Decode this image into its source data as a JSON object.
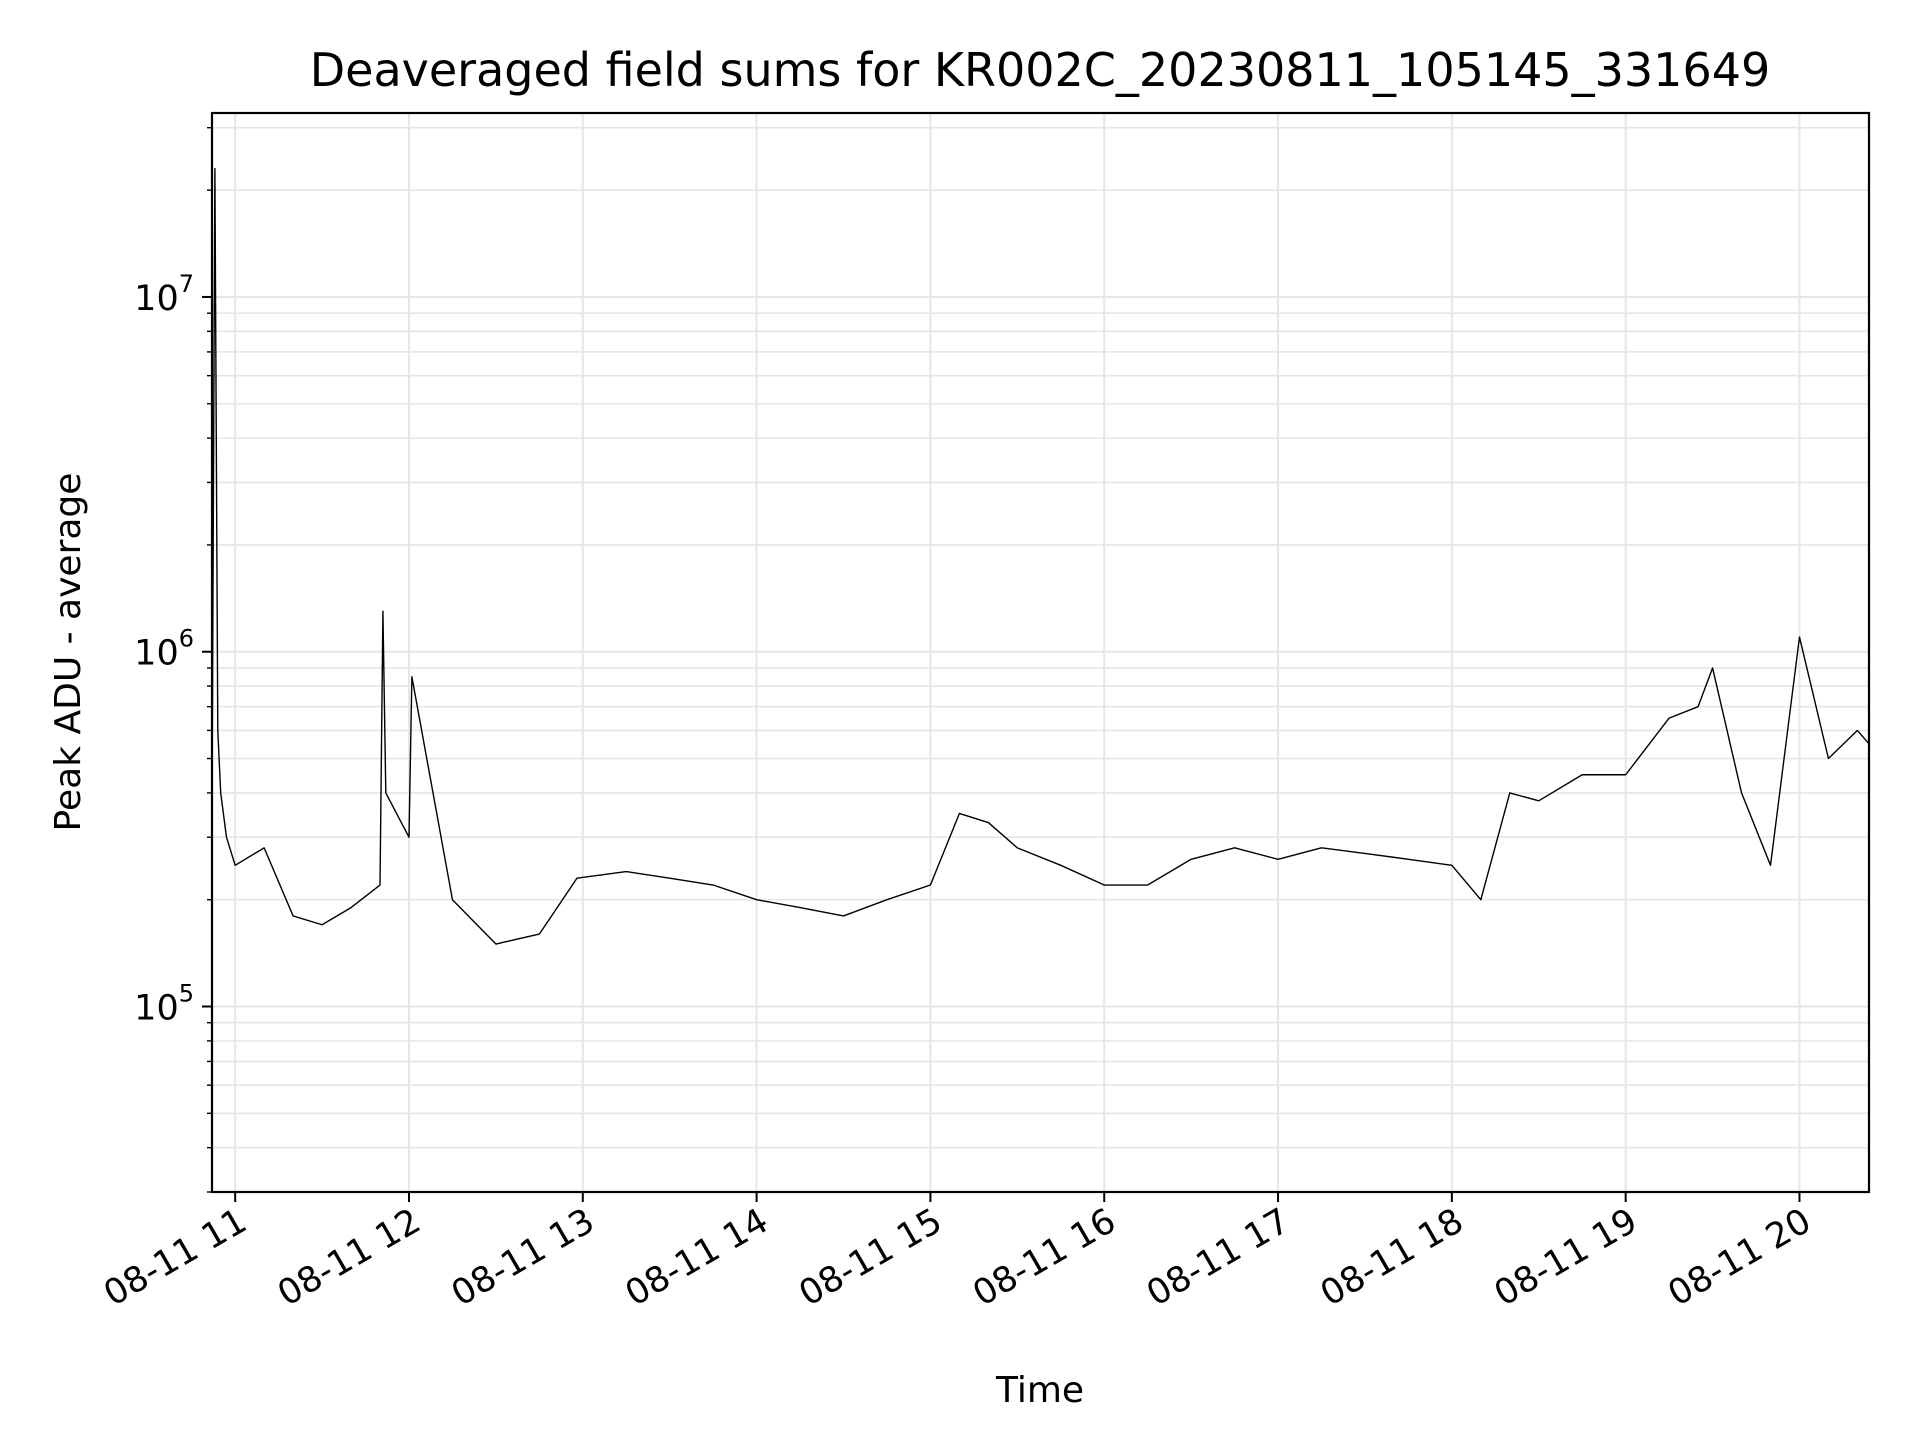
{
  "chart_data": {
    "type": "line",
    "title": "Deaveraged field sums for KR002C_20230811_105145_331649",
    "xlabel": "Time",
    "ylabel": "Peak ADU - average",
    "x_axis_type": "time",
    "xlim": [
      "2023-08-11 10:52",
      "2023-08-11 20:24"
    ],
    "y_scale": "log",
    "ylim": [
      30000,
      33000000
    ],
    "grid": true,
    "legend": "none",
    "x_tick_labels": [
      "08-11 11",
      "08-11 12",
      "08-11 13",
      "08-11 14",
      "08-11 15",
      "08-11 16",
      "08-11 17",
      "08-11 18",
      "08-11 19",
      "08-11 20"
    ],
    "y_tick_labels": [
      {
        "base": "10",
        "exp": "5"
      },
      {
        "base": "10",
        "exp": "6"
      },
      {
        "base": "10",
        "exp": "7"
      }
    ],
    "colors": {
      "line": "#000000",
      "grid": "#e6e6e6",
      "axes": "#000000"
    },
    "series": [
      {
        "x": [
          "2023-08-11 10:52",
          "2023-08-11 10:53",
          "2023-08-11 10:54",
          "2023-08-11 10:55",
          "2023-08-11 10:57",
          "2023-08-11 11:00",
          "2023-08-11 11:10",
          "2023-08-11 11:20",
          "2023-08-11 11:30",
          "2023-08-11 11:40",
          "2023-08-11 11:50",
          "2023-08-11 11:51",
          "2023-08-11 11:52",
          "2023-08-11 12:00",
          "2023-08-11 12:01",
          "2023-08-11 12:15",
          "2023-08-11 12:30",
          "2023-08-11 12:45",
          "2023-08-11 12:58",
          "2023-08-11 13:15",
          "2023-08-11 13:30",
          "2023-08-11 13:45",
          "2023-08-11 14:00",
          "2023-08-11 14:15",
          "2023-08-11 14:30",
          "2023-08-11 14:45",
          "2023-08-11 15:00",
          "2023-08-11 15:10",
          "2023-08-11 15:20",
          "2023-08-11 15:30",
          "2023-08-11 15:45",
          "2023-08-11 16:00",
          "2023-08-11 16:15",
          "2023-08-11 16:30",
          "2023-08-11 16:45",
          "2023-08-11 17:00",
          "2023-08-11 17:15",
          "2023-08-11 17:30",
          "2023-08-11 17:45",
          "2023-08-11 18:00",
          "2023-08-11 18:10",
          "2023-08-11 18:20",
          "2023-08-11 18:30",
          "2023-08-11 18:45",
          "2023-08-11 19:00",
          "2023-08-11 19:15",
          "2023-08-11 19:25",
          "2023-08-11 19:30",
          "2023-08-11 19:40",
          "2023-08-11 19:50",
          "2023-08-11 20:00",
          "2023-08-11 20:10",
          "2023-08-11 20:20",
          "2023-08-11 20:24"
        ],
        "y": [
          350000,
          23000000,
          600000,
          400000,
          300000,
          250000,
          280000,
          180000,
          170000,
          190000,
          220000,
          1300000,
          400000,
          300000,
          850000,
          200000,
          150000,
          160000,
          230000,
          240000,
          230000,
          220000,
          200000,
          190000,
          180000,
          200000,
          220000,
          350000,
          330000,
          280000,
          250000,
          220000,
          220000,
          260000,
          280000,
          260000,
          280000,
          270000,
          260000,
          250000,
          200000,
          400000,
          380000,
          450000,
          450000,
          650000,
          700000,
          900000,
          400000,
          250000,
          1100000,
          500000,
          600000,
          550000
        ]
      }
    ]
  }
}
